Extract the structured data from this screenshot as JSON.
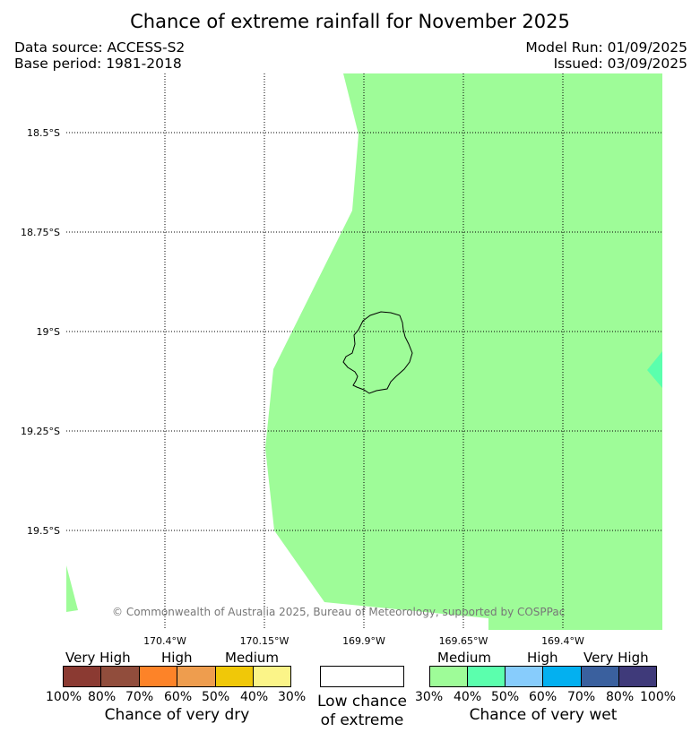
{
  "header": {
    "title": "Chance of extreme rainfall for November 2025",
    "data_source": "Data source: ACCESS-S2",
    "base_period": "Base period: 1981-2018",
    "model_run": "Model Run: 01/09/2025",
    "issued": "Issued: 03/09/2025"
  },
  "map": {
    "latitude_labels": [
      "18.5°S",
      "18.75°S",
      "19°S",
      "19.25°S",
      "19.5°S"
    ],
    "longitude_labels": [
      "170.4°W",
      "170.15°W",
      "169.9°W",
      "169.65°W",
      "169.4°W"
    ],
    "copyright": "© Commonwealth of Australia 2025, Bureau of Meteorology, supported by COSPPac",
    "colors": {
      "medium_wet": "#9efc98",
      "high_wet": "#5bffad",
      "coastline": "#000000"
    }
  },
  "legend": {
    "dry": {
      "categories": [
        "Very High",
        "High",
        "Medium"
      ],
      "percent_labels": [
        "100%",
        "80%",
        "70%",
        "60%",
        "50%",
        "40%",
        "30%"
      ],
      "colors": [
        "#8b3a32",
        "#914d3c",
        "#fd8328",
        "#ee9d4e",
        "#f0c808",
        "#fbf488"
      ],
      "caption": "Chance of very dry"
    },
    "neutral": {
      "caption_line1": "Low chance",
      "caption_line2": "of extreme",
      "color": "#ffffff"
    },
    "wet": {
      "categories": [
        "Medium",
        "High",
        "Very High"
      ],
      "percent_labels": [
        "30%",
        "40%",
        "50%",
        "60%",
        "70%",
        "80%",
        "100%"
      ],
      "colors": [
        "#9efc98",
        "#5bffad",
        "#87ccfc",
        "#03b0f0",
        "#3a609e",
        "#3f3a7a"
      ],
      "caption": "Chance of very wet"
    }
  }
}
